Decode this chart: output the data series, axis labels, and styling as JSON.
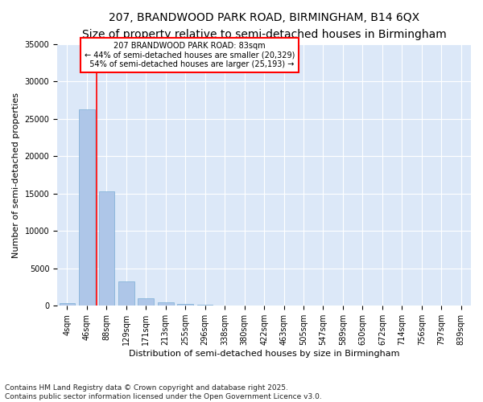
{
  "title_line1": "207, BRANDWOOD PARK ROAD, BIRMINGHAM, B14 6QX",
  "title_line2": "Size of property relative to semi-detached houses in Birmingham",
  "xlabel": "Distribution of semi-detached houses by size in Birmingham",
  "ylabel": "Number of semi-detached properties",
  "categories": [
    "4sqm",
    "46sqm",
    "88sqm",
    "129sqm",
    "171sqm",
    "213sqm",
    "255sqm",
    "296sqm",
    "338sqm",
    "380sqm",
    "422sqm",
    "463sqm",
    "505sqm",
    "547sqm",
    "589sqm",
    "630sqm",
    "672sqm",
    "714sqm",
    "756sqm",
    "797sqm",
    "839sqm"
  ],
  "values": [
    400,
    26300,
    15300,
    3300,
    1000,
    500,
    250,
    100,
    50,
    20,
    10,
    5,
    0,
    0,
    0,
    0,
    0,
    0,
    0,
    0,
    0
  ],
  "bar_color": "#aec6e8",
  "bar_edge_color": "#7aadd4",
  "vline_color": "red",
  "vline_x_index": 1.5,
  "property_size": "83sqm",
  "pct_smaller": 44,
  "count_smaller": "20,329",
  "pct_larger": 54,
  "count_larger": "25,193",
  "box_color": "red",
  "ylim": [
    0,
    35000
  ],
  "yticks": [
    0,
    5000,
    10000,
    15000,
    20000,
    25000,
    30000,
    35000
  ],
  "background_color": "#dce8f8",
  "footer": "Contains HM Land Registry data © Crown copyright and database right 2025.\nContains public sector information licensed under the Open Government Licence v3.0.",
  "title_fontsize": 10,
  "subtitle_fontsize": 9,
  "axis_fontsize": 8,
  "tick_fontsize": 7,
  "annot_fontsize": 7
}
